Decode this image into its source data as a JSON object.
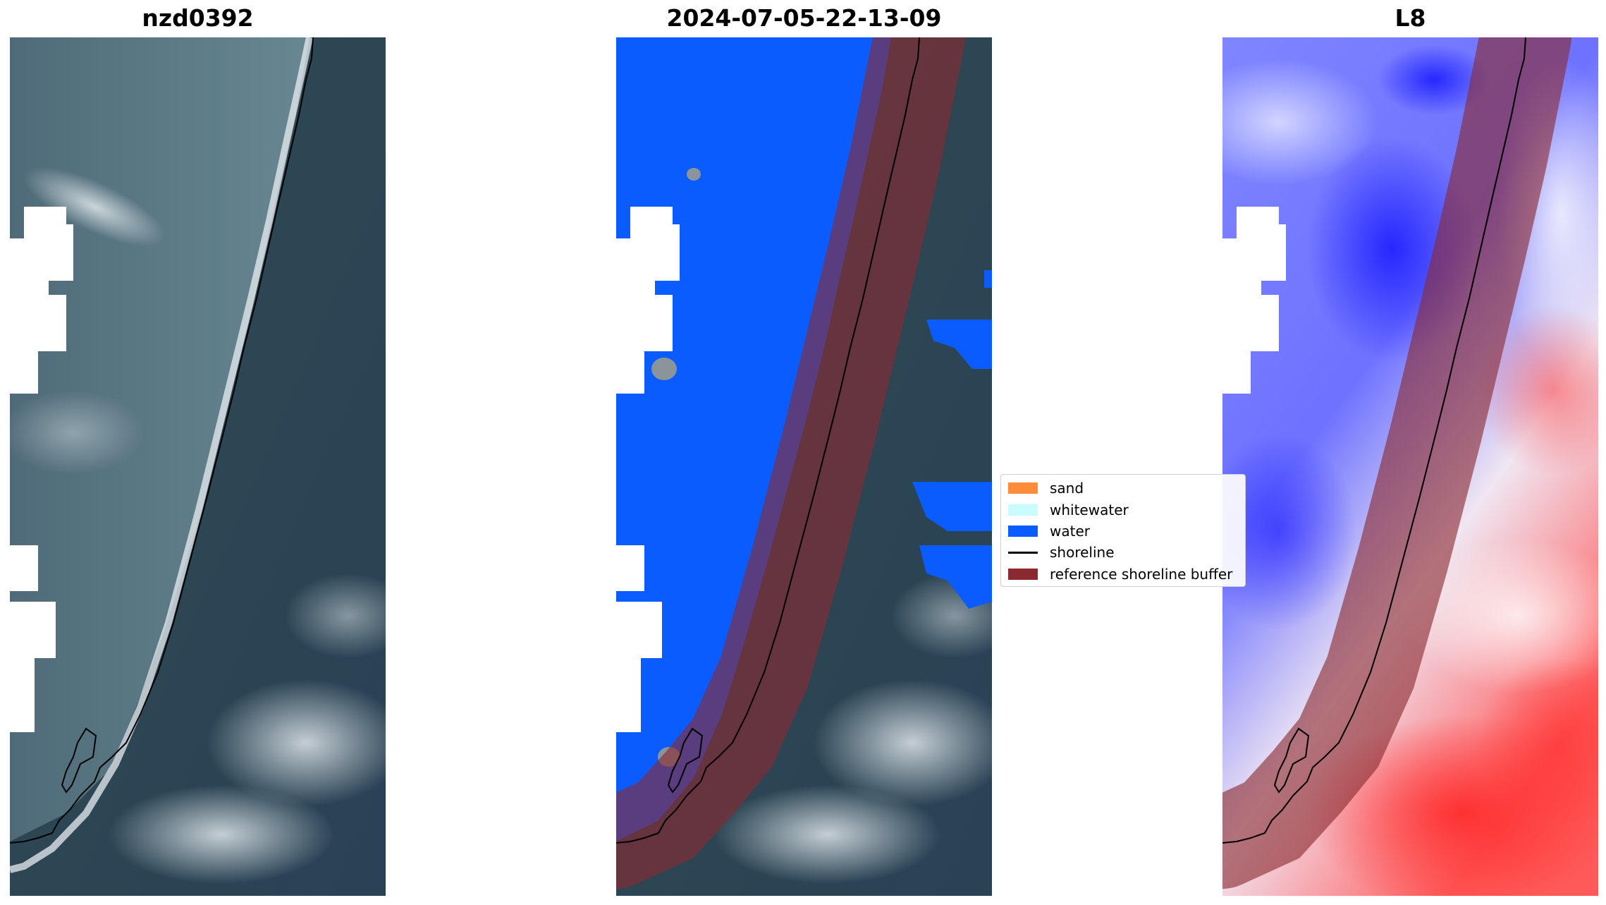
{
  "panels": [
    {
      "title": "nzd0392",
      "kind": "rgb-image"
    },
    {
      "title": "2024-07-05-22-13-09",
      "kind": "classified-image"
    },
    {
      "title": "L8",
      "kind": "index-image"
    }
  ],
  "legend": {
    "items": [
      {
        "label": "sand",
        "color": "#ff8c3a",
        "type": "patch"
      },
      {
        "label": "whitewater",
        "color": "#c8fcff",
        "type": "patch"
      },
      {
        "label": "water",
        "color": "#0a5cff",
        "type": "patch"
      },
      {
        "label": "shoreline",
        "color": "#000000",
        "type": "line"
      },
      {
        "label": "reference shoreline buffer",
        "color": "#8a2a30",
        "type": "patch"
      }
    ]
  },
  "colors": {
    "water_class": "#0a5cff",
    "buffer": "#8a2a30",
    "land_dark": "#2f4a5c",
    "sea_gray": "#5a7a88",
    "index_low": "#1a1aff",
    "index_high": "#ff2020"
  }
}
